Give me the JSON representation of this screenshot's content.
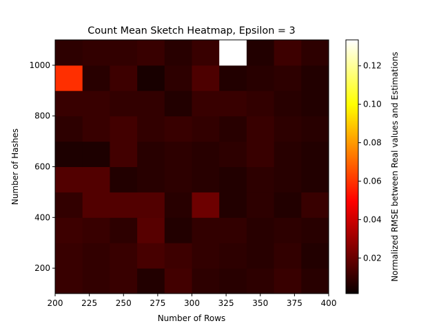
{
  "chart_data": {
    "type": "heatmap",
    "title": "Count Mean Sketch Heatmap, Epsilon = 3",
    "xlabel": "Number of Rows",
    "ylabel": "Number of Hashes",
    "colorbar_label": "Normalized RMSE between Real values and Estimations",
    "colormap": "hot",
    "x_start": 200,
    "x_step": 20,
    "x_count": 10,
    "y_start": 100,
    "y_step": 100,
    "y_count": 10,
    "xlim": [
      200,
      400
    ],
    "ylim": [
      100,
      1100
    ],
    "clim": [
      0.0015,
      0.1335
    ],
    "x_ticks": [
      200,
      225,
      250,
      275,
      300,
      325,
      350,
      375,
      400
    ],
    "y_ticks": [
      200,
      400,
      600,
      800,
      1000
    ],
    "colorbar_ticks": [
      0.02,
      0.04,
      0.06,
      0.08,
      0.1,
      0.12
    ],
    "colorbar_tick_labels": [
      "0.02",
      "0.04",
      "0.06",
      "0.08",
      "0.10",
      "0.12"
    ],
    "values": [
      [
        0.01,
        0.009,
        0.01,
        0.006,
        0.012,
        0.008,
        0.007,
        0.008,
        0.01,
        0.007
      ],
      [
        0.01,
        0.009,
        0.01,
        0.013,
        0.011,
        0.009,
        0.008,
        0.007,
        0.009,
        0.006
      ],
      [
        0.011,
        0.01,
        0.008,
        0.016,
        0.006,
        0.009,
        0.009,
        0.007,
        0.008,
        0.007
      ],
      [
        0.009,
        0.015,
        0.015,
        0.015,
        0.007,
        0.02,
        0.006,
        0.008,
        0.006,
        0.01
      ],
      [
        0.015,
        0.015,
        0.006,
        0.007,
        0.008,
        0.007,
        0.006,
        0.008,
        0.007,
        0.006
      ],
      [
        0.005,
        0.005,
        0.012,
        0.007,
        0.008,
        0.007,
        0.008,
        0.01,
        0.007,
        0.006
      ],
      [
        0.008,
        0.01,
        0.012,
        0.009,
        0.01,
        0.009,
        0.007,
        0.01,
        0.008,
        0.007
      ],
      [
        0.01,
        0.01,
        0.009,
        0.009,
        0.006,
        0.01,
        0.01,
        0.009,
        0.007,
        0.006
      ],
      [
        0.059,
        0.007,
        0.011,
        0.004,
        0.008,
        0.014,
        0.006,
        0.007,
        0.008,
        0.006
      ],
      [
        0.008,
        0.009,
        0.009,
        0.01,
        0.007,
        0.01,
        0.1335,
        0.006,
        0.011,
        0.008
      ]
    ]
  }
}
